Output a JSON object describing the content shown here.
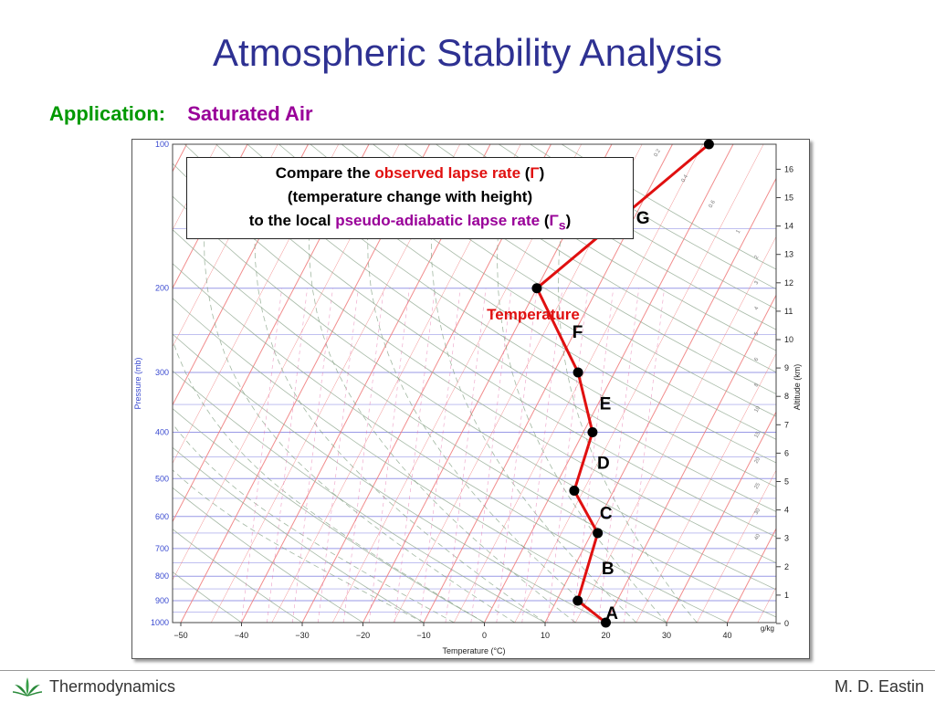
{
  "title": "Atmospheric Stability Analysis",
  "application": {
    "label": "Application:",
    "value": "Saturated Air"
  },
  "callout": {
    "line1_pre": "Compare the ",
    "line1_hl": "observed lapse rate",
    "line1_sym_pre": " (",
    "line1_sym": "Γ",
    "line1_sym_post": ")",
    "line2": "(temperature change with height)",
    "line3_pre": "to the local ",
    "line3_hl": "pseudo-adiabatic lapse rate",
    "line3_sym_pre": " (",
    "line3_sym": "Γ",
    "line3_sub": "s",
    "line3_post": ")"
  },
  "chart_data": {
    "type": "line",
    "xlabel": "Temperature (°C)",
    "ylabel": "Pressure (mb)",
    "y2label": "Altitude (km)",
    "mixing_ratio_unit": "g/kg",
    "series_label": "Temperature",
    "x_ticks": [
      "−50",
      "−40",
      "−30",
      "−20",
      "−10",
      "0",
      "10",
      "20",
      "30",
      "40"
    ],
    "p_ticks": [
      "100",
      "200",
      "300",
      "400",
      "500",
      "600",
      "700",
      "800",
      "900",
      "1000"
    ],
    "alt_ticks": [
      "0",
      "1",
      "2",
      "3",
      "4",
      "5",
      "6",
      "7",
      "8",
      "9",
      "10",
      "11",
      "12",
      "13",
      "14",
      "15",
      "16"
    ],
    "mixing_ratio_ticks": [
      "0.2",
      "0.4",
      "0.6",
      "1",
      "2",
      "3",
      "4",
      "5",
      "6",
      "8",
      "10",
      "15",
      "20",
      "25",
      "30",
      "40"
    ],
    "profile": [
      {
        "p": 1000,
        "t": 20
      },
      {
        "p": 900,
        "t": 13.5
      },
      {
        "p": 650,
        "t": 11
      },
      {
        "p": 530,
        "t": 3.5
      },
      {
        "p": 400,
        "t": 1.5
      },
      {
        "p": 300,
        "t": -6
      },
      {
        "p": 200,
        "t": -20
      },
      {
        "p": 100,
        "t": -4
      }
    ],
    "segment_labels": [
      "A",
      "B",
      "C",
      "D",
      "E",
      "F",
      "G"
    ]
  },
  "footer": {
    "left": "Thermodynamics",
    "right": "M. D. Eastin"
  },
  "colors": {
    "title": "#2e3192",
    "temp": "#e01010",
    "isobar": "#8080e0",
    "isotherm": "#f08080",
    "adiabat": "#90a890"
  }
}
